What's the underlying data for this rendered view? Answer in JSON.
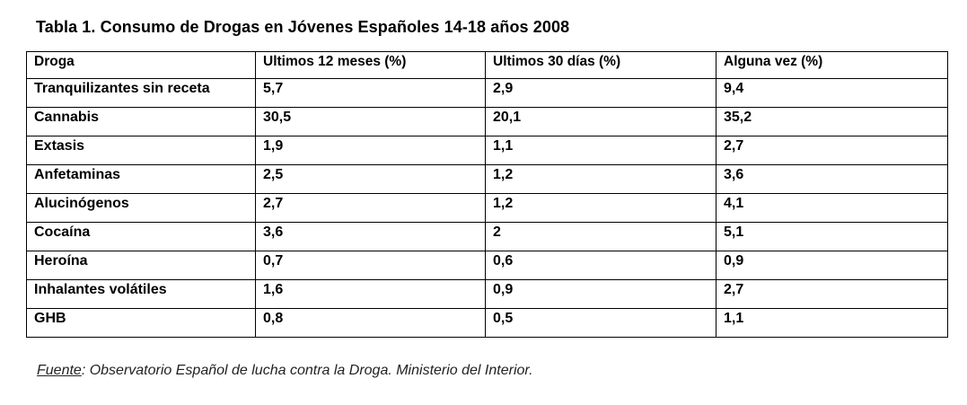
{
  "title": "Tabla 1. Consumo de Drogas en Jóvenes Españoles 14-18 años 2008",
  "table": {
    "headers": [
      "Droga",
      "Ultimos 12 meses (%)",
      "Ultimos 30 días (%)",
      "Alguna vez (%)"
    ],
    "rows": [
      [
        "Tranquilizantes sin receta",
        "5,7",
        "2,9",
        "9,4"
      ],
      [
        "Cannabis",
        "30,5",
        "20,1",
        "35,2"
      ],
      [
        "Extasis",
        "1,9",
        "1,1",
        "2,7"
      ],
      [
        "Anfetaminas",
        "2,5",
        "1,2",
        "3,6"
      ],
      [
        "Alucinógenos",
        "2,7",
        "1,2",
        "4,1"
      ],
      [
        "Cocaína",
        "3,6",
        "2",
        "5,1"
      ],
      [
        "Heroína",
        "0,7",
        "0,6",
        "0,9"
      ],
      [
        "Inhalantes volátiles",
        "1,6",
        "0,9",
        "2,7"
      ],
      [
        "GHB",
        "0,8",
        "0,5",
        "1,1"
      ]
    ]
  },
  "source": {
    "label": "Fuente",
    "text": ": Observatorio Español de lucha contra la Droga. Ministerio del Interior."
  }
}
